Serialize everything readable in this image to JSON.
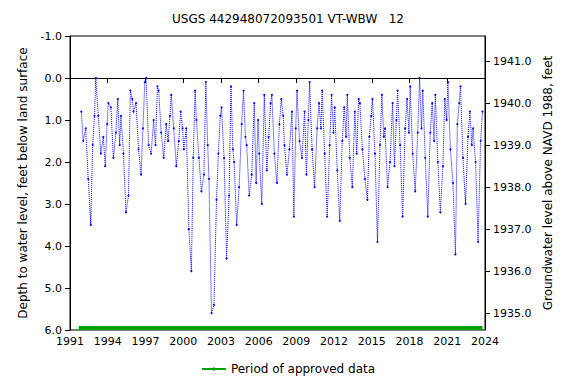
{
  "chart_data": {
    "type": "line",
    "title": "USGS 442948072093501 VT-WBW   12",
    "x_label": "",
    "y_label": "Depth to water level, feet below land surface",
    "y2_label": "Groundwater level above NAVD 1988, feet",
    "xlim": [
      1991,
      2024
    ],
    "xticks": [
      1991,
      1994,
      1997,
      2000,
      2003,
      2006,
      2009,
      2012,
      2015,
      2018,
      2021,
      2024
    ],
    "ylim": [
      6,
      -1
    ],
    "yticks": [
      {
        "value": -1,
        "label": "-1.0"
      },
      {
        "value": 0,
        "label": "0.0"
      },
      {
        "value": 1,
        "label": "1.0"
      },
      {
        "value": 2,
        "label": "2.0"
      },
      {
        "value": 3,
        "label": "3.0"
      },
      {
        "value": 4,
        "label": "4.0"
      },
      {
        "value": 5,
        "label": "5.0"
      },
      {
        "value": 6,
        "label": "6.0"
      }
    ],
    "y2lim": [
      1934.6,
      1941.6
    ],
    "y2ticks": [
      {
        "value": 1935,
        "label": "1935.0"
      },
      {
        "value": 1936,
        "label": "1936.0"
      },
      {
        "value": 1937,
        "label": "1937.0"
      },
      {
        "value": 1938,
        "label": "1938.0"
      },
      {
        "value": 1939,
        "label": "1939.0"
      },
      {
        "value": 1940,
        "label": "1940.0"
      },
      {
        "value": 1941,
        "label": "1941.0"
      }
    ],
    "grid": false,
    "legend": "bottom",
    "series": [
      {
        "color": "#0000ff",
        "marker": "circle",
        "line_style": "dotted",
        "x": [
          1991.9,
          1992.05,
          1992.25,
          1992.45,
          1992.65,
          1992.8,
          1992.95,
          1993.05,
          1993.25,
          1993.45,
          1993.65,
          1993.8,
          1993.95,
          1994.05,
          1994.25,
          1994.45,
          1994.65,
          1994.8,
          1994.95,
          1995.05,
          1995.25,
          1995.45,
          1995.65,
          1995.8,
          1995.95,
          1996.05,
          1996.25,
          1996.45,
          1996.65,
          1996.8,
          1996.95,
          1997.05,
          1997.25,
          1997.45,
          1997.65,
          1997.8,
          1997.95,
          1998.05,
          1998.25,
          1998.45,
          1998.65,
          1998.8,
          1998.95,
          1999.05,
          1999.25,
          1999.45,
          1999.65,
          1999.8,
          1999.95,
          2000.05,
          2000.25,
          2000.45,
          2000.65,
          2000.8,
          2000.95,
          2001.05,
          2001.25,
          2001.45,
          2001.65,
          2001.8,
          2001.95,
          2002.05,
          2002.25,
          2002.45,
          2002.65,
          2002.8,
          2002.95,
          2003.05,
          2003.25,
          2003.45,
          2003.65,
          2003.8,
          2003.95,
          2004.05,
          2004.25,
          2004.45,
          2004.65,
          2004.8,
          2004.95,
          2005.05,
          2005.25,
          2005.45,
          2005.65,
          2005.8,
          2005.95,
          2006.05,
          2006.25,
          2006.45,
          2006.65,
          2006.8,
          2006.95,
          2007.05,
          2007.25,
          2007.45,
          2007.65,
          2007.8,
          2007.95,
          2008.05,
          2008.25,
          2008.45,
          2008.65,
          2008.8,
          2008.95,
          2009.05,
          2009.25,
          2009.45,
          2009.65,
          2009.8,
          2009.95,
          2010.05,
          2010.25,
          2010.45,
          2010.65,
          2010.8,
          2010.95,
          2011.05,
          2011.25,
          2011.45,
          2011.65,
          2011.8,
          2011.95,
          2012.05,
          2012.25,
          2012.45,
          2012.65,
          2012.8,
          2012.95,
          2013.05,
          2013.25,
          2013.45,
          2013.65,
          2013.8,
          2013.95,
          2014.05,
          2014.25,
          2014.45,
          2014.65,
          2014.8,
          2014.95,
          2015.05,
          2015.25,
          2015.45,
          2015.65,
          2015.8,
          2015.95,
          2016.05,
          2016.25,
          2016.45,
          2016.65,
          2016.8,
          2016.95,
          2017.05,
          2017.25,
          2017.45,
          2017.65,
          2017.8,
          2017.95,
          2018.05,
          2018.25,
          2018.45,
          2018.65,
          2018.8,
          2018.95,
          2019.05,
          2019.25,
          2019.45,
          2019.65,
          2019.8,
          2019.95,
          2020.05,
          2020.25,
          2020.45,
          2020.65,
          2020.8,
          2020.95,
          2021.05,
          2021.25,
          2021.45,
          2021.65,
          2021.8,
          2021.95,
          2022.05,
          2022.25,
          2022.45,
          2022.65,
          2022.8,
          2022.95,
          2023.05,
          2023.25,
          2023.45,
          2023.65,
          2023.8
        ],
        "values": [
          0.8,
          1.5,
          1.2,
          2.4,
          3.5,
          1.6,
          0.9,
          0.0,
          0.9,
          1.8,
          1.4,
          2.1,
          1.1,
          0.6,
          0.7,
          1.9,
          1.3,
          0.5,
          1.6,
          0.9,
          1.8,
          3.2,
          2.8,
          0.3,
          0.5,
          0.8,
          0.6,
          1.7,
          2.3,
          1.2,
          0.1,
          0.0,
          1.6,
          1.8,
          1.0,
          1.6,
          0.2,
          0.3,
          1.3,
          1.9,
          1.1,
          1.5,
          0.9,
          0.4,
          1.2,
          2.1,
          1.5,
          0.8,
          1.2,
          1.7,
          1.2,
          3.6,
          4.6,
          1.9,
          0.3,
          1.0,
          1.9,
          2.7,
          2.3,
          0.1,
          1.6,
          2.4,
          5.6,
          5.4,
          2.9,
          1.8,
          0.9,
          0.7,
          1.9,
          4.3,
          2.8,
          0.2,
          1.7,
          2.0,
          3.5,
          2.6,
          1.1,
          0.3,
          1.4,
          1.6,
          2.8,
          2.3,
          0.6,
          2.5,
          1.0,
          1.8,
          3.0,
          0.4,
          2.2,
          1.4,
          0.6,
          0.4,
          1.8,
          2.5,
          1.1,
          0.5,
          0.9,
          1.6,
          2.3,
          1.7,
          0.8,
          3.3,
          1.2,
          0.3,
          1.5,
          1.9,
          0.8,
          2.3,
          1.0,
          0.1,
          1.7,
          2.6,
          1.2,
          0.6,
          1.2,
          0.3,
          1.8,
          3.3,
          1.6,
          0.4,
          1.3,
          0.7,
          2.2,
          3.4,
          1.5,
          0.7,
          1.4,
          0.4,
          1.9,
          2.6,
          0.8,
          1.8,
          0.5,
          0.6,
          1.7,
          2.4,
          2.9,
          1.4,
          0.9,
          0.5,
          1.8,
          3.9,
          1.6,
          0.4,
          1.4,
          1.2,
          2.6,
          2.0,
          0.6,
          2.1,
          1.0,
          0.3,
          1.6,
          3.3,
          1.2,
          0.5,
          1.3,
          0.2,
          1.8,
          2.7,
          1.3,
          0.0,
          1.2,
          0.3,
          1.9,
          3.3,
          1.3,
          0.6,
          1.5,
          0.4,
          2.0,
          3.2,
          2.1,
          0.5,
          1.0,
          0.1,
          1.7,
          2.5,
          4.2,
          1.1,
          0.6,
          0.2,
          1.9,
          3.0,
          1.4,
          0.8,
          1.6,
          1.2,
          2.0,
          3.9,
          1.5,
          0.8
        ]
      },
      {
        "name": "Period of approved data",
        "color": "#00a000",
        "line_style": "solid",
        "x": [
          1991.7,
          2023.8
        ],
        "values": [
          5.95,
          5.95
        ]
      }
    ]
  }
}
